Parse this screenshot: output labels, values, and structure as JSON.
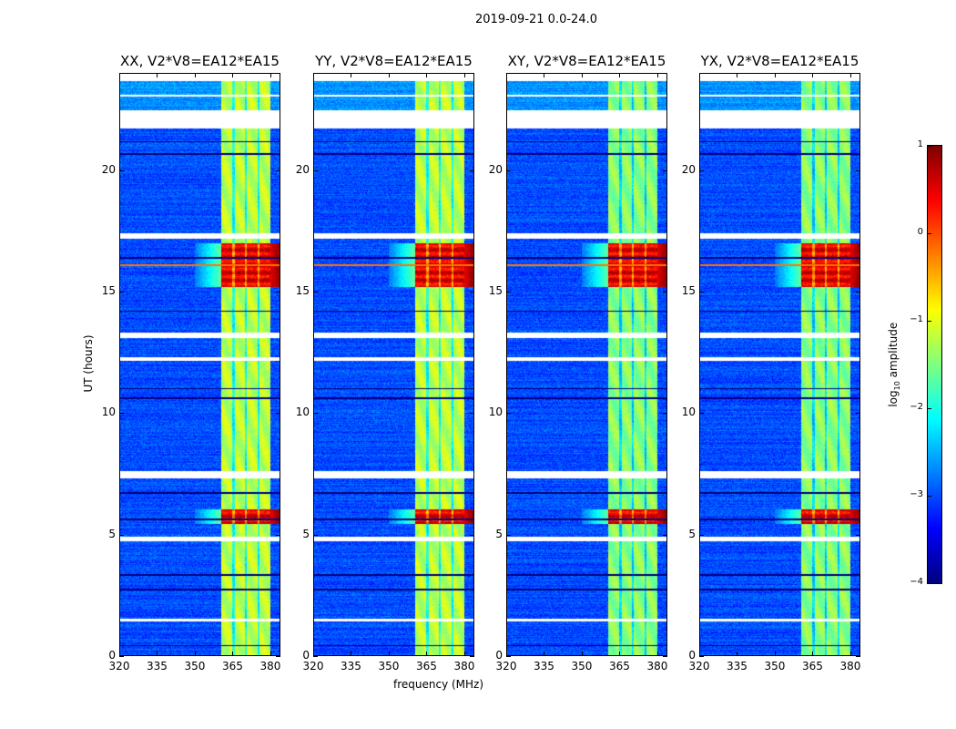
{
  "chart_data": {
    "type": "heatmap",
    "title": "2019-09-21 0.0-24.0",
    "xlabel": "frequency (MHz)",
    "ylabel": "UT (hours)",
    "xlim": [
      320,
      384
    ],
    "ylim": [
      0,
      24
    ],
    "xticks": [
      320,
      335,
      350,
      365,
      380
    ],
    "yticks": [
      0,
      5,
      10,
      15,
      20
    ],
    "panels": [
      {
        "title": "XX, V2*V8=EA12*EA15",
        "pol": "XX"
      },
      {
        "title": "YY, V2*V8=EA12*EA15",
        "pol": "YY"
      },
      {
        "title": "XY, V2*V8=EA12*EA15",
        "pol": "XY"
      },
      {
        "title": "YX, V2*V8=EA12*EA15",
        "pol": "YX"
      }
    ],
    "colorbar": {
      "label_prefix": "log",
      "label_sub": "10",
      "label_suffix": " amplitude",
      "range": [
        -4,
        1
      ],
      "ticks": [
        "1",
        "0",
        "−1",
        "−2",
        "−3",
        "−4"
      ],
      "tick_values": [
        1,
        0,
        -1,
        -2,
        -3,
        -4
      ],
      "colormap": "jet"
    },
    "data_extent_hours": [
      0,
      23.7
    ],
    "background_log_amplitude": -3.0,
    "rfi_band_mhz": [
      360.7,
      380.4
    ],
    "rfi_gaps_mhz": [
      365.5,
      370.5,
      375.6
    ],
    "rfi_log_amplitude": -1.3,
    "flagged_hours": [
      [
        21.75,
        22.5
      ],
      [
        17.2,
        17.4
      ],
      [
        13.1,
        13.3
      ],
      [
        12.15,
        12.3
      ],
      [
        7.3,
        7.6
      ],
      [
        4.7,
        4.9
      ],
      [
        1.4,
        1.5
      ],
      [
        23.05,
        23.15
      ]
    ],
    "dark_lines_hours": [
      21.2,
      20.7,
      16.4,
      14.2,
      11.0,
      10.6,
      6.7,
      5.6,
      3.3,
      2.7,
      0.4
    ],
    "high_amplitude_hours": [
      [
        15.2,
        17.0
      ],
      [
        5.4,
        6.0
      ]
    ],
    "high_log_amplitude": 0.5
  }
}
